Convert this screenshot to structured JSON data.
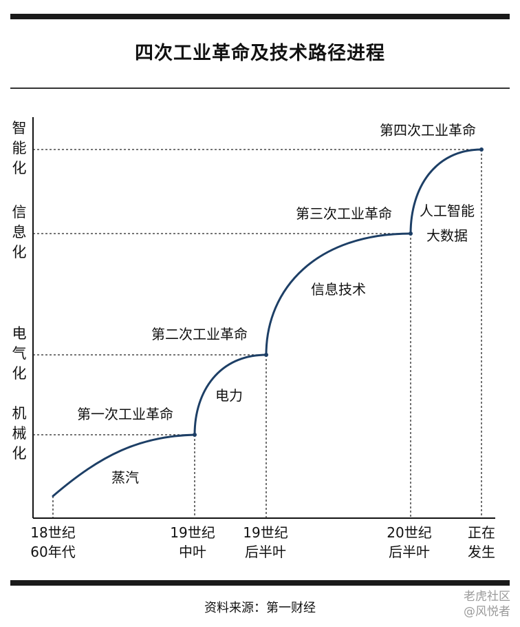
{
  "header": {
    "title": "四次工业革命及技术路径进程"
  },
  "footer": {
    "source": "资料来源：第一财经",
    "watermark_line1": "老虎社区",
    "watermark_line2": "@风悦者"
  },
  "chart_data": {
    "type": "line",
    "title": "四次工业革命及技术路径进程",
    "x_categories": [
      "18世纪 60年代",
      "19世纪 中叶",
      "19世纪 后半叶",
      "20世纪 后半叶",
      "正在 发生"
    ],
    "x_tick_lines": [
      [
        "18世纪",
        "60年代"
      ],
      [
        "19世纪",
        "中叶"
      ],
      [
        "19世纪",
        "后半叶"
      ],
      [
        "20世纪",
        "后半叶"
      ],
      [
        "正在",
        "发生"
      ]
    ],
    "y_categories": [
      "机械化",
      "电气化",
      "信息化",
      "智能化"
    ],
    "y_tick_chars": [
      [
        "机",
        "械",
        "化"
      ],
      [
        "电",
        "气",
        "化"
      ],
      [
        "信",
        "息",
        "化"
      ],
      [
        "智",
        "能",
        "化"
      ]
    ],
    "segments": [
      {
        "tech": "蒸汽",
        "revolution": "第一次工业革命",
        "from_x": 0,
        "to_x": 1,
        "from_level": 0,
        "to_level": 1
      },
      {
        "tech": "电力",
        "revolution": "第二次工业革命",
        "from_x": 1,
        "to_x": 2,
        "from_level": 1,
        "to_level": 2
      },
      {
        "tech": "信息技术",
        "revolution": "第三次工业革命",
        "from_x": 2,
        "to_x": 3,
        "from_level": 2,
        "to_level": 3
      },
      {
        "tech": "人工智能 大数据",
        "tech_lines": [
          "人工智能",
          "大数据"
        ],
        "revolution": "第四次工业革命",
        "from_x": 3,
        "to_x": 4,
        "from_level": 3,
        "to_level": 4
      }
    ]
  }
}
